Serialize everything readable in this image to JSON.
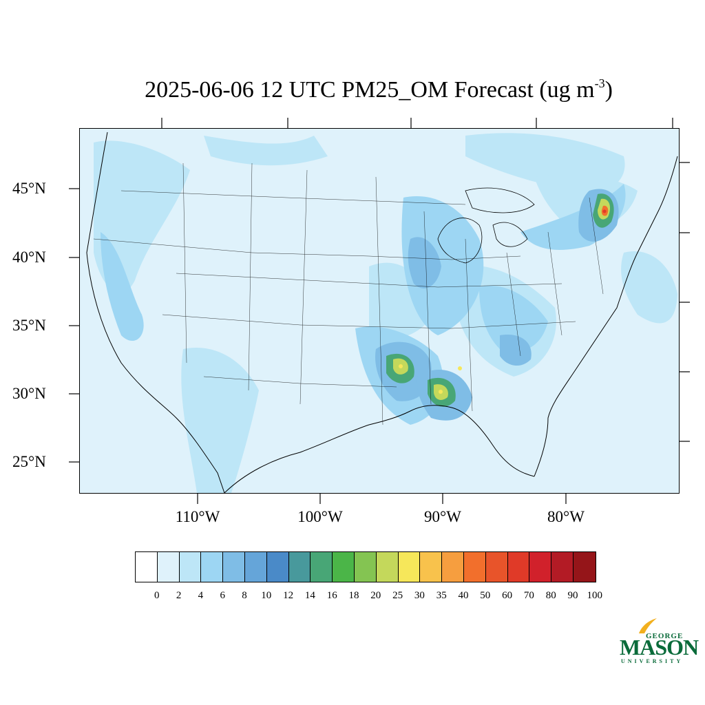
{
  "title": {
    "main": "2025-06-06 12 UTC PM25_OM Forecast (ug m",
    "sup": "-3",
    "close": ")"
  },
  "map": {
    "latitude_labels": [
      "45°N",
      "40°N",
      "35°N",
      "30°N",
      "25°N"
    ],
    "longitude_labels": [
      "110°W",
      "100°W",
      "90°W",
      "80°W"
    ],
    "background_color": "#dff2fb"
  },
  "colorbar": {
    "levels": [
      "0",
      "2",
      "4",
      "6",
      "8",
      "10",
      "12",
      "14",
      "16",
      "18",
      "20",
      "25",
      "30",
      "35",
      "40",
      "50",
      "60",
      "70",
      "80",
      "90",
      "100"
    ],
    "colors": [
      "#ffffff",
      "#dff2fb",
      "#bde6f7",
      "#9dd6f3",
      "#7fbde6",
      "#65a5d9",
      "#4a8ac8",
      "#48999c",
      "#48a676",
      "#4bb548",
      "#84c452",
      "#c4d85b",
      "#f6e75a",
      "#f8c24c",
      "#f69e3f",
      "#f26f2c",
      "#e8542a",
      "#e03a28",
      "#d1212b",
      "#b31b25",
      "#951519"
    ]
  },
  "logo": {
    "line1": "GEORGE",
    "line2": "MASON",
    "line3": "UNIVERSITY"
  }
}
